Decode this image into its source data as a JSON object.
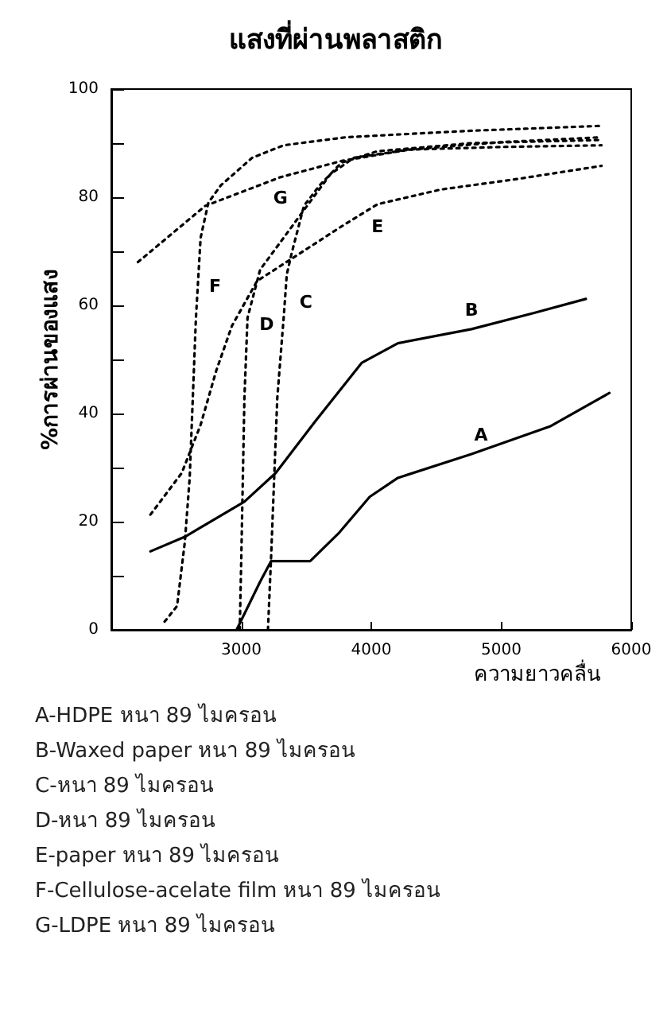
{
  "chart_data": {
    "type": "line",
    "title": "แสงที่ผ่านพลาสติก",
    "xlabel": "ความยาวคลื่น",
    "ylabel": "%การผ่านของแสง",
    "xlim": [
      2000,
      6000
    ],
    "xticks": [
      3000,
      4000,
      5000,
      6000
    ],
    "ylim": [
      0,
      100
    ],
    "yticks": [
      0,
      {
        "value": 10,
        "label": null
      },
      20,
      {
        "value": 30,
        "label": null
      },
      40,
      {
        "value": 50,
        "label": null
      },
      60,
      {
        "value": 70,
        "label": null
      },
      80,
      {
        "value": 90,
        "label": null
      },
      100
    ],
    "grid": false,
    "legend": false,
    "marker": "none",
    "series": [
      {
        "name": "A",
        "color": "#000000",
        "line_style": "solid",
        "x": [
          2964,
          3145,
          3229,
          3530,
          3747,
          3988,
          4205,
          4771,
          5374,
          5832
        ],
        "values": [
          0,
          8.9,
          12.7,
          12.7,
          17.8,
          24.6,
          28.1,
          32.5,
          37.6,
          43.8
        ]
      },
      {
        "name": "B",
        "color": "#000000",
        "line_style": "solid",
        "x": [
          2301,
          2566,
          3024,
          3265,
          3567,
          3928,
          4205,
          4771,
          5253,
          5651
        ],
        "values": [
          14.5,
          17.2,
          23.7,
          29,
          38.5,
          49.4,
          53,
          55.6,
          58.6,
          61.2
        ]
      },
      {
        "name": "C",
        "color": "#000000",
        "line_style": "dotted",
        "x": [
          3205,
          3229,
          3253,
          3277,
          3326,
          3350,
          3386,
          3482,
          3603,
          3771,
          4048,
          4771,
          5771
        ],
        "values": [
          0,
          13.3,
          28.1,
          42.9,
          57.7,
          65.7,
          69.5,
          78.4,
          82.2,
          86.4,
          88.5,
          90,
          90.6
        ]
      },
      {
        "name": "D",
        "color": "#000000",
        "line_style": "dotted",
        "x": [
          2988,
          3000,
          3012,
          3024,
          3048,
          3145,
          3326,
          3506,
          3687,
          3868,
          4289,
          5012,
          5771
        ],
        "values": [
          0,
          13.3,
          28.1,
          42.9,
          57.7,
          66.6,
          72.5,
          78.4,
          84.3,
          87.3,
          88.8,
          89.3,
          89.6
        ]
      },
      {
        "name": "E",
        "color": "#000000",
        "line_style": "dotted",
        "x": [
          2301,
          2542,
          2687,
          2807,
          2928,
          3121,
          3386,
          3771,
          4048,
          4530,
          5133,
          5771
        ],
        "values": [
          21.3,
          29,
          37.9,
          47.9,
          56.2,
          64.5,
          68.6,
          74.6,
          78.7,
          81.4,
          83.4,
          85.8
        ]
      },
      {
        "name": "F",
        "color": "#000000",
        "line_style": "dotted",
        "x": [
          2410,
          2506,
          2566,
          2603,
          2627,
          2651,
          2687,
          2747,
          2843,
          3084,
          3326,
          3808,
          4771,
          5771
        ],
        "values": [
          1.5,
          4.4,
          16.3,
          28.1,
          42.9,
          57.7,
          72.5,
          79,
          82.2,
          87.3,
          89.6,
          91.1,
          92.3,
          93.2
        ]
      },
      {
        "name": "G",
        "color": "#000000",
        "line_style": "dotted",
        "x": [
          2205,
          2723,
          3301,
          3771,
          4289,
          5012,
          5771
        ],
        "values": [
          68,
          78.4,
          83.7,
          86.7,
          88.8,
          90.2,
          91.1
        ]
      }
    ],
    "annotations": [
      "A-HDPE หนา 89 ไมครอน",
      "B-Waxed paper หนา 89 ไมครอน",
      "C-หนา 89 ไมครอน",
      "D-หนา 89 ไมครอน",
      "E-paper หนา 89 ไมครอน",
      "F-Cellulose-acelate film หนา 89 ไมครอน",
      "G-LDPE หนา 89 ไมครอน"
    ]
  }
}
